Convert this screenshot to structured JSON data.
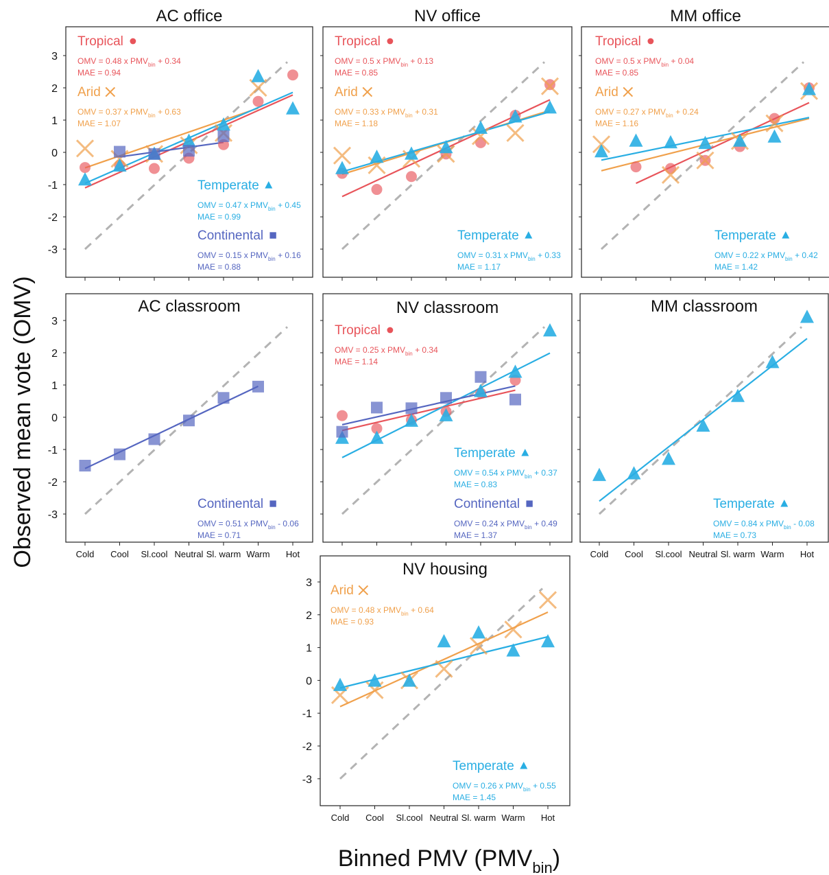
{
  "figure": {
    "ylabel": "Observed mean vote (OMV)",
    "xlabel_main": "Binned PMV (PMV",
    "xlabel_sub": "bin",
    "xlabel_close": ")"
  },
  "colors": {
    "Tropical": "#e8545a",
    "Arid": "#f0a04b",
    "Temperate": "#29aee3",
    "Continental": "#5566c0",
    "reference": "#b3b3b3"
  },
  "markers": {
    "Tropical": "circle",
    "Arid": "cross",
    "Temperate": "triangle",
    "Continental": "square"
  },
  "chart_data": [
    {
      "type": "scatter",
      "title": "AC office",
      "categories": [
        "Cold",
        "Cool",
        "Sl.cool",
        "Neutral",
        "Sl. warm",
        "Warm",
        "Hot"
      ],
      "ylim": [
        -3,
        3
      ],
      "yticks": [
        "-3",
        "-2",
        "-1",
        "0",
        "1",
        "2",
        "3"
      ],
      "show_xticklabels": false,
      "series": [
        {
          "name": "Tropical",
          "values": [
            -0.47,
            -0.4,
            -0.5,
            -0.18,
            0.24,
            1.58,
            2.4
          ],
          "fit_text": "OMV = 0.48 x PMV",
          "fit_sub": "bin",
          "fit_rest": " + 0.34",
          "mae": "MAE = 0.94",
          "fit": [
            0.48,
            0.34
          ]
        },
        {
          "name": "Arid",
          "values": [
            0.12,
            -0.2,
            -0.05,
            0.22,
            0.6,
            2.0,
            null
          ],
          "fit_text": "OMV = 0.37 x PMV",
          "fit_sub": "bin",
          "fit_rest": " + 0.63",
          "mae": "MAE = 1.07",
          "fit": [
            0.37,
            0.63
          ]
        },
        {
          "name": "Temperate",
          "values": [
            -0.85,
            -0.42,
            -0.05,
            0.35,
            0.85,
            2.35,
            1.35
          ],
          "fit_text": "OMV = 0.47 x PMV",
          "fit_sub": "bin",
          "fit_rest": " + 0.45",
          "mae": "MAE = 0.99",
          "fit": [
            0.47,
            0.45
          ]
        },
        {
          "name": "Continental",
          "values": [
            null,
            0.02,
            -0.05,
            0.05,
            0.5,
            null,
            null
          ],
          "fit_text": "OMV = 0.15 x PMV",
          "fit_sub": "bin",
          "fit_rest": " + 0.16",
          "mae": "MAE = 0.88",
          "fit": [
            0.15,
            0.16
          ]
        }
      ]
    },
    {
      "type": "scatter",
      "title": "NV office",
      "categories": [
        "Cold",
        "Cool",
        "Sl.cool",
        "Neutral",
        "Sl. warm",
        "Warm",
        "Hot"
      ],
      "ylim": [
        -3,
        3
      ],
      "show_xticklabels": false,
      "series": [
        {
          "name": "Tropical",
          "values": [
            -0.65,
            -1.15,
            -0.75,
            -0.05,
            0.3,
            1.15,
            2.1
          ],
          "fit_text": "OMV = 0.5 x PMV",
          "fit_sub": "bin",
          "fit_rest": " + 0.13",
          "mae": "MAE = 0.85",
          "fit": [
            0.5,
            0.13
          ]
        },
        {
          "name": "Arid",
          "values": [
            -0.1,
            -0.4,
            -0.2,
            -0.05,
            0.5,
            0.6,
            2.05
          ],
          "fit_text": "OMV = 0.33 x PMV",
          "fit_sub": "bin",
          "fit_rest": " + 0.31",
          "mae": "MAE = 1.18",
          "fit": [
            0.33,
            0.31
          ]
        },
        {
          "name": "Temperate",
          "values": [
            -0.5,
            -0.15,
            -0.05,
            0.15,
            0.75,
            1.1,
            1.38
          ],
          "fit_text": "OMV = 0.31 x PMV",
          "fit_sub": "bin",
          "fit_rest": " + 0.33",
          "mae": "MAE = 1.17",
          "fit": [
            0.31,
            0.33
          ]
        }
      ]
    },
    {
      "type": "scatter",
      "title": "MM office",
      "categories": [
        "Cold",
        "Cool",
        "Sl.cool",
        "Neutral",
        "Sl. warm",
        "Warm",
        "Hot"
      ],
      "ylim": [
        -3,
        3
      ],
      "show_xticklabels": false,
      "series": [
        {
          "name": "Tropical",
          "values": [
            null,
            -0.45,
            -0.5,
            -0.25,
            0.18,
            1.05,
            2.0
          ],
          "fit_text": "OMV = 0.5 x PMV",
          "fit_sub": "bin",
          "fit_rest": " + 0.04",
          "mae": "MAE = 0.85",
          "fit": [
            0.5,
            0.04
          ]
        },
        {
          "name": "Arid",
          "values": [
            0.25,
            null,
            -0.7,
            -0.25,
            0.35,
            0.9,
            1.9
          ],
          "fit_text": "OMV = 0.27 x PMV",
          "fit_sub": "bin",
          "fit_rest": " + 0.24",
          "mae": "MAE = 1.16",
          "fit": [
            0.27,
            0.24
          ]
        },
        {
          "name": "Temperate",
          "values": [
            0.02,
            0.35,
            0.3,
            0.28,
            0.35,
            0.48,
            1.95
          ],
          "fit_text": "OMV = 0.22 x PMV",
          "fit_sub": "bin",
          "fit_rest": " + 0.42",
          "mae": "MAE = 1.42",
          "fit": [
            0.22,
            0.42
          ]
        }
      ]
    },
    {
      "type": "scatter",
      "title": "AC classroom",
      "categories": [
        "Cold",
        "Cool",
        "Sl.cool",
        "Neutral",
        "Sl. warm",
        "Warm",
        "Hot"
      ],
      "ylim": [
        -3,
        3
      ],
      "yticks": [
        "-3",
        "-2",
        "-1",
        "0",
        "1",
        "2",
        "3"
      ],
      "show_xticklabels": true,
      "series": [
        {
          "name": "Continental",
          "values": [
            -1.5,
            -1.15,
            -0.68,
            -0.1,
            0.6,
            0.95,
            null
          ],
          "fit_text": "OMV = 0.51 x PMV",
          "fit_sub": "bin",
          "fit_rest": " - 0.06",
          "mae": "MAE = 0.71",
          "fit": [
            0.51,
            -0.06
          ]
        }
      ]
    },
    {
      "type": "scatter",
      "title": "NV classroom",
      "categories": [
        "Cold",
        "Cool",
        "Sl.cool",
        "Neutral",
        "Sl. warm",
        "Warm",
        "Hot"
      ],
      "ylim": [
        -3,
        3
      ],
      "show_xticklabels": false,
      "series": [
        {
          "name": "Tropical",
          "values": [
            0.05,
            -0.35,
            -0.08,
            0.18,
            0.75,
            1.15,
            null
          ],
          "fit_text": "OMV = 0.25 x PMV",
          "fit_sub": "bin",
          "fit_rest": " + 0.34",
          "mae": "MAE = 1.14",
          "fit": [
            0.25,
            0.34
          ]
        },
        {
          "name": "Temperate",
          "values": [
            -0.65,
            -0.65,
            -0.12,
            0.05,
            0.8,
            1.4,
            2.68
          ],
          "fit_text": "OMV = 0.54 x PMV",
          "fit_sub": "bin",
          "fit_rest": " + 0.37",
          "mae": "MAE = 0.83",
          "fit": [
            0.54,
            0.37
          ]
        },
        {
          "name": "Continental",
          "values": [
            -0.45,
            0.3,
            0.28,
            0.6,
            1.25,
            0.55,
            null
          ],
          "fit_text": "OMV = 0.24 x PMV",
          "fit_sub": "bin",
          "fit_rest": " + 0.49",
          "mae": "MAE = 1.37",
          "fit": [
            0.24,
            0.49
          ]
        }
      ]
    },
    {
      "type": "scatter",
      "title": "MM classroom",
      "categories": [
        "Cold",
        "Cool",
        "Sl.cool",
        "Neutral",
        "Sl. warm",
        "Warm",
        "Hot"
      ],
      "ylim": [
        -3,
        3
      ],
      "show_xticklabels": true,
      "series": [
        {
          "name": "Temperate",
          "values": [
            -1.8,
            -1.75,
            -1.3,
            -0.27,
            0.65,
            1.7,
            3.1
          ],
          "fit_text": "OMV = 0.84 x PMV",
          "fit_sub": "bin",
          "fit_rest": " - 0.08",
          "mae": "MAE = 0.73",
          "fit": [
            0.84,
            -0.08
          ]
        }
      ]
    },
    {
      "type": "scatter",
      "title": "NV housing",
      "categories": [
        "Cold",
        "Cool",
        "Sl.cool",
        "Neutral",
        "Sl. warm",
        "Warm",
        "Hot"
      ],
      "ylim": [
        -3,
        3
      ],
      "yticks": [
        "-3",
        "-2",
        "-1",
        "0",
        "1",
        "2",
        "3"
      ],
      "show_xticklabels": true,
      "series": [
        {
          "name": "Arid",
          "values": [
            -0.45,
            -0.3,
            0.0,
            0.35,
            1.05,
            1.55,
            2.45
          ],
          "fit_text": "OMV = 0.48 x PMV",
          "fit_sub": "bin",
          "fit_rest": " + 0.64",
          "mae": "MAE = 0.93",
          "fit": [
            0.48,
            0.64
          ]
        },
        {
          "name": "Temperate",
          "values": [
            -0.15,
            -0.02,
            -0.02,
            1.18,
            1.45,
            0.9,
            1.18
          ],
          "fit_text": "OMV = 0.26 x PMV",
          "fit_sub": "bin",
          "fit_rest": " + 0.55",
          "mae": "MAE = 1.45",
          "fit": [
            0.26,
            0.55
          ]
        }
      ]
    }
  ]
}
